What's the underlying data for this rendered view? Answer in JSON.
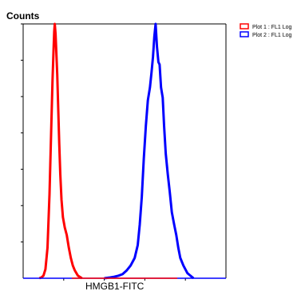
{
  "chart_data": {
    "type": "line",
    "title": "",
    "xlabel": "HMGB1-FITC",
    "ylabel": "Counts",
    "xlim": [
      0,
      100
    ],
    "ylim": [
      0,
      100
    ],
    "grid": false,
    "legend_position": "top-right",
    "series": [
      {
        "name": "Plot 1 : FL1 Log",
        "color": "#ff0000",
        "x": [
          8,
          9,
          10,
          11,
          12,
          13,
          13.8,
          14.5,
          15,
          15.3,
          15.6,
          16,
          16.3,
          16.8,
          17.3,
          17.8,
          18.3,
          18.9,
          19.6,
          20.5,
          21.5,
          22.5,
          23.5,
          24.5,
          25.5,
          27,
          29
        ],
        "values": [
          0,
          0.3,
          1,
          3.5,
          12,
          33,
          58,
          78,
          90,
          97,
          100,
          96,
          90,
          80,
          67,
          53,
          41,
          31,
          24,
          20,
          17,
          12,
          8,
          5,
          3,
          1,
          0
        ]
      },
      {
        "name": "Plot 2 : FL1 Log",
        "color": "#0000ff",
        "x": [
          40,
          43,
          45,
          47,
          49,
          51,
          53,
          55,
          56.5,
          57.5,
          58.5,
          59.5,
          60.5,
          61.5,
          62.5,
          63.3,
          64,
          64.7,
          65.3,
          66,
          66.7,
          67.3,
          68,
          68.8,
          69.5,
          70.3,
          71.3,
          72.3,
          73.3,
          74.5,
          75.5,
          76.5,
          77.5,
          79,
          81,
          84
        ],
        "values": [
          0,
          0.3,
          0.6,
          1,
          1.6,
          3,
          5,
          8,
          13,
          21,
          32,
          47,
          60,
          70,
          75,
          81,
          87,
          95,
          100,
          91,
          85,
          84,
          75,
          71,
          60,
          49,
          41,
          34,
          26,
          21,
          17,
          12,
          8,
          5,
          2,
          0
        ]
      }
    ]
  }
}
